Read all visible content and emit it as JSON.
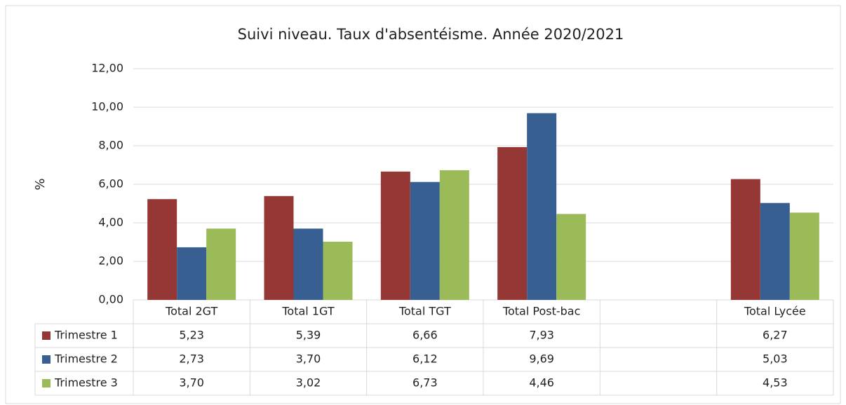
{
  "chart_data": {
    "type": "bar",
    "title": "Suivi niveau. Taux d'absentéisme. Année 2020/2021",
    "y_label": "%",
    "categories": [
      "Total 2GT",
      "Total 1GT",
      "Total TGT",
      "Total Post-bac",
      null,
      "Total Lycée"
    ],
    "series": [
      {
        "name": "Trimestre 1",
        "color": "#953735",
        "values": [
          5.23,
          5.39,
          6.66,
          7.93,
          null,
          6.27
        ],
        "value_labels": [
          "5,23",
          "5,39",
          "6,66",
          "7,93",
          null,
          "6,27"
        ]
      },
      {
        "name": "Trimestre 2",
        "color": "#375f92",
        "values": [
          2.73,
          3.7,
          6.12,
          9.69,
          null,
          5.03
        ],
        "value_labels": [
          "2,73",
          "3,70",
          "6,12",
          "9,69",
          null,
          "5,03"
        ]
      },
      {
        "name": "Trimestre 3",
        "color": "#9bbb59",
        "values": [
          3.7,
          3.02,
          6.73,
          4.46,
          null,
          4.53
        ],
        "value_labels": [
          "3,70",
          "3,02",
          "6,73",
          "4,46",
          null,
          "4,53"
        ]
      }
    ],
    "ylim": [
      0,
      12
    ],
    "yticks": [
      {
        "value": 0,
        "label": "0,00"
      },
      {
        "value": 2,
        "label": "2,00"
      },
      {
        "value": 4,
        "label": "4,00"
      },
      {
        "value": 6,
        "label": "6,00"
      },
      {
        "value": 8,
        "label": "8,00"
      },
      {
        "value": 10,
        "label": "10,00"
      },
      {
        "value": 12,
        "label": "12,00"
      }
    ],
    "grid": true
  }
}
